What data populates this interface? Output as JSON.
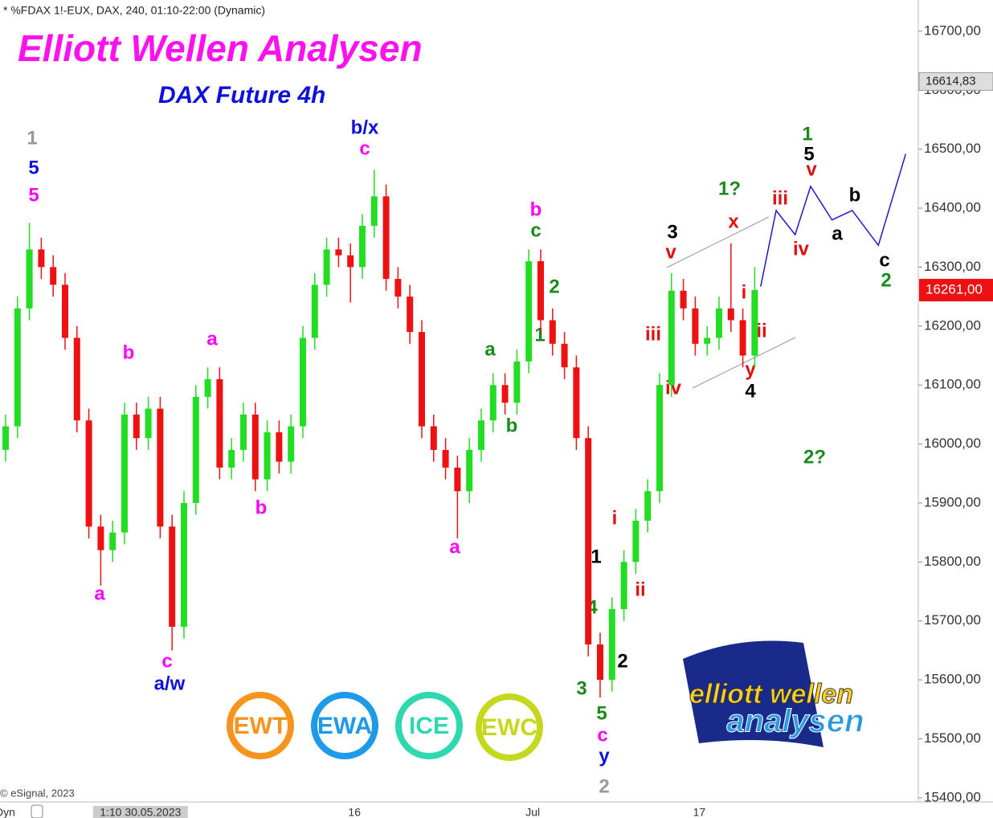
{
  "chart_data": {
    "type": "candlestick",
    "header": "* %FDAX 1!-EUX, DAX, 240, 01:10-22:00 (Dynamic)",
    "title": "Elliott Wellen Analysen",
    "subtitle": "DAX Future 4h",
    "copyright": "© eSignal, 2023",
    "mode": "Dyn",
    "up_color": "#22dd22",
    "down_color": "#ee1111",
    "categories": [
      null,
      null,
      null,
      null,
      null,
      null,
      null,
      null,
      null,
      null,
      null,
      "1:10 30.05.2023",
      null,
      null,
      null,
      null,
      null,
      null,
      null,
      null,
      null,
      null,
      null,
      null,
      null,
      null,
      null,
      null,
      null,
      "16",
      null,
      null,
      null,
      null,
      null,
      null,
      null,
      null,
      null,
      null,
      null,
      null,
      null,
      null,
      "Jul",
      null,
      null,
      null,
      null,
      null,
      null,
      null,
      null,
      null,
      null,
      null,
      null,
      null,
      "17",
      null,
      null,
      null,
      null,
      null
    ],
    "open": [
      15990,
      16030,
      16230,
      16330,
      16300,
      16270,
      16180,
      16040,
      15860,
      15820,
      15850,
      16050,
      16010,
      16060,
      15860,
      15690,
      15900,
      16080,
      16110,
      15960,
      15990,
      16050,
      15940,
      16020,
      15970,
      16030,
      16180,
      16270,
      16330,
      16320,
      16300,
      16370,
      16420,
      16280,
      16250,
      16190,
      16030,
      15990,
      15960,
      15920,
      15990,
      16040,
      16100,
      16070,
      16140,
      16310,
      16210,
      16170,
      16130,
      16010,
      15660,
      15600,
      15720,
      15800,
      15870,
      15920,
      16100,
      16260,
      16230,
      16170,
      16180,
      16230,
      16210,
      16150
    ],
    "high": [
      16050,
      16250,
      16375,
      16350,
      16320,
      16290,
      16200,
      16060,
      15880,
      15870,
      16070,
      16070,
      16080,
      16080,
      15880,
      15920,
      16100,
      16130,
      16130,
      16010,
      16070,
      16070,
      16040,
      16040,
      16050,
      16200,
      16290,
      16350,
      16350,
      16340,
      16390,
      16465,
      16440,
      16300,
      16270,
      16210,
      16050,
      16010,
      15980,
      16010,
      16060,
      16120,
      16120,
      16160,
      16330,
      16330,
      16230,
      16190,
      16150,
      16030,
      15680,
      15740,
      15820,
      15890,
      15940,
      16120,
      16290,
      16280,
      16250,
      16200,
      16250,
      16340,
      16230,
      16300
    ],
    "low": [
      15970,
      16010,
      16210,
      16280,
      16250,
      16160,
      16020,
      15840,
      15760,
      15800,
      15830,
      15990,
      15990,
      15840,
      15650,
      15670,
      15880,
      16060,
      15940,
      15940,
      15970,
      15920,
      15920,
      15950,
      15950,
      16010,
      16160,
      16250,
      16300,
      16240,
      16280,
      16350,
      16260,
      16230,
      16170,
      16010,
      15970,
      15940,
      15840,
      15900,
      15970,
      16020,
      16050,
      16050,
      16120,
      16190,
      16150,
      16110,
      15990,
      15640,
      15570,
      15580,
      15700,
      15780,
      15850,
      15900,
      16080,
      16210,
      16150,
      16150,
      16160,
      16190,
      16130,
      16130
    ],
    "close": [
      16030,
      16230,
      16330,
      16300,
      16270,
      16180,
      16040,
      15860,
      15820,
      15850,
      16050,
      16010,
      16060,
      15860,
      15690,
      15900,
      16080,
      16110,
      15960,
      15990,
      16050,
      15940,
      16020,
      15970,
      16030,
      16180,
      16270,
      16330,
      16320,
      16300,
      16370,
      16420,
      16280,
      16250,
      16190,
      16030,
      15990,
      15960,
      15920,
      15990,
      16040,
      16100,
      16070,
      16140,
      16310,
      16210,
      16170,
      16130,
      16010,
      15660,
      15600,
      15720,
      15800,
      15870,
      15920,
      16100,
      16260,
      16230,
      16170,
      16180,
      16230,
      16210,
      16150,
      16261
    ],
    "projection": {
      "color": "#1a1acc",
      "x": [
        63.5,
        64.8,
        66.4,
        67.7,
        69.5,
        71.2,
        73.4,
        75.7
      ],
      "values": [
        16267,
        16396,
        16355,
        16437,
        16380,
        16396,
        16337,
        16492
      ]
    },
    "ylim": [
      15393,
      16753
    ],
    "yticks": [
      {
        "value": 15400,
        "label": "15400,00"
      },
      {
        "value": 15500,
        "label": "15500,00"
      },
      {
        "value": 15600,
        "label": "15600,00"
      },
      {
        "value": 15700,
        "label": "15700,00"
      },
      {
        "value": 15800,
        "label": "15800,00"
      },
      {
        "value": 15900,
        "label": "15900,00"
      },
      {
        "value": 16000,
        "label": "16000,00"
      },
      {
        "value": 16100,
        "label": "16100,00"
      },
      {
        "value": 16200,
        "label": "16200,00"
      },
      {
        "value": 16300,
        "label": "16300,00"
      },
      {
        "value": 16400,
        "label": "16400,00"
      },
      {
        "value": 16500,
        "label": "16500,00"
      },
      {
        "value": 16600,
        "label": "16600,00"
      },
      {
        "value": 16700,
        "label": "16700,00"
      }
    ],
    "marker_price": {
      "value": 16614.83,
      "label": "16614,83"
    },
    "last_price": {
      "value": 16261,
      "label": "16261,00"
    },
    "annotations": [
      "1",
      "5",
      "5",
      "a",
      "b",
      "a",
      "b",
      "c",
      "a/w",
      "b/x",
      "c",
      "b",
      "c",
      "2",
      "1",
      "a",
      "b",
      "a",
      "1",
      "i",
      "4",
      "ii",
      "2",
      "3",
      "5",
      "c",
      "y",
      "2",
      "iii",
      "iv",
      "3",
      "v",
      "1?",
      "x",
      "i",
      "ii",
      "y",
      "4",
      "1",
      "5",
      "v",
      "iii",
      "iv",
      "b",
      "a",
      "c",
      "2",
      "2?"
    ],
    "badges": [
      "EWT",
      "EWA",
      "ICE",
      "EWC"
    ],
    "logo": [
      "elliott wellen",
      "analysen"
    ]
  }
}
